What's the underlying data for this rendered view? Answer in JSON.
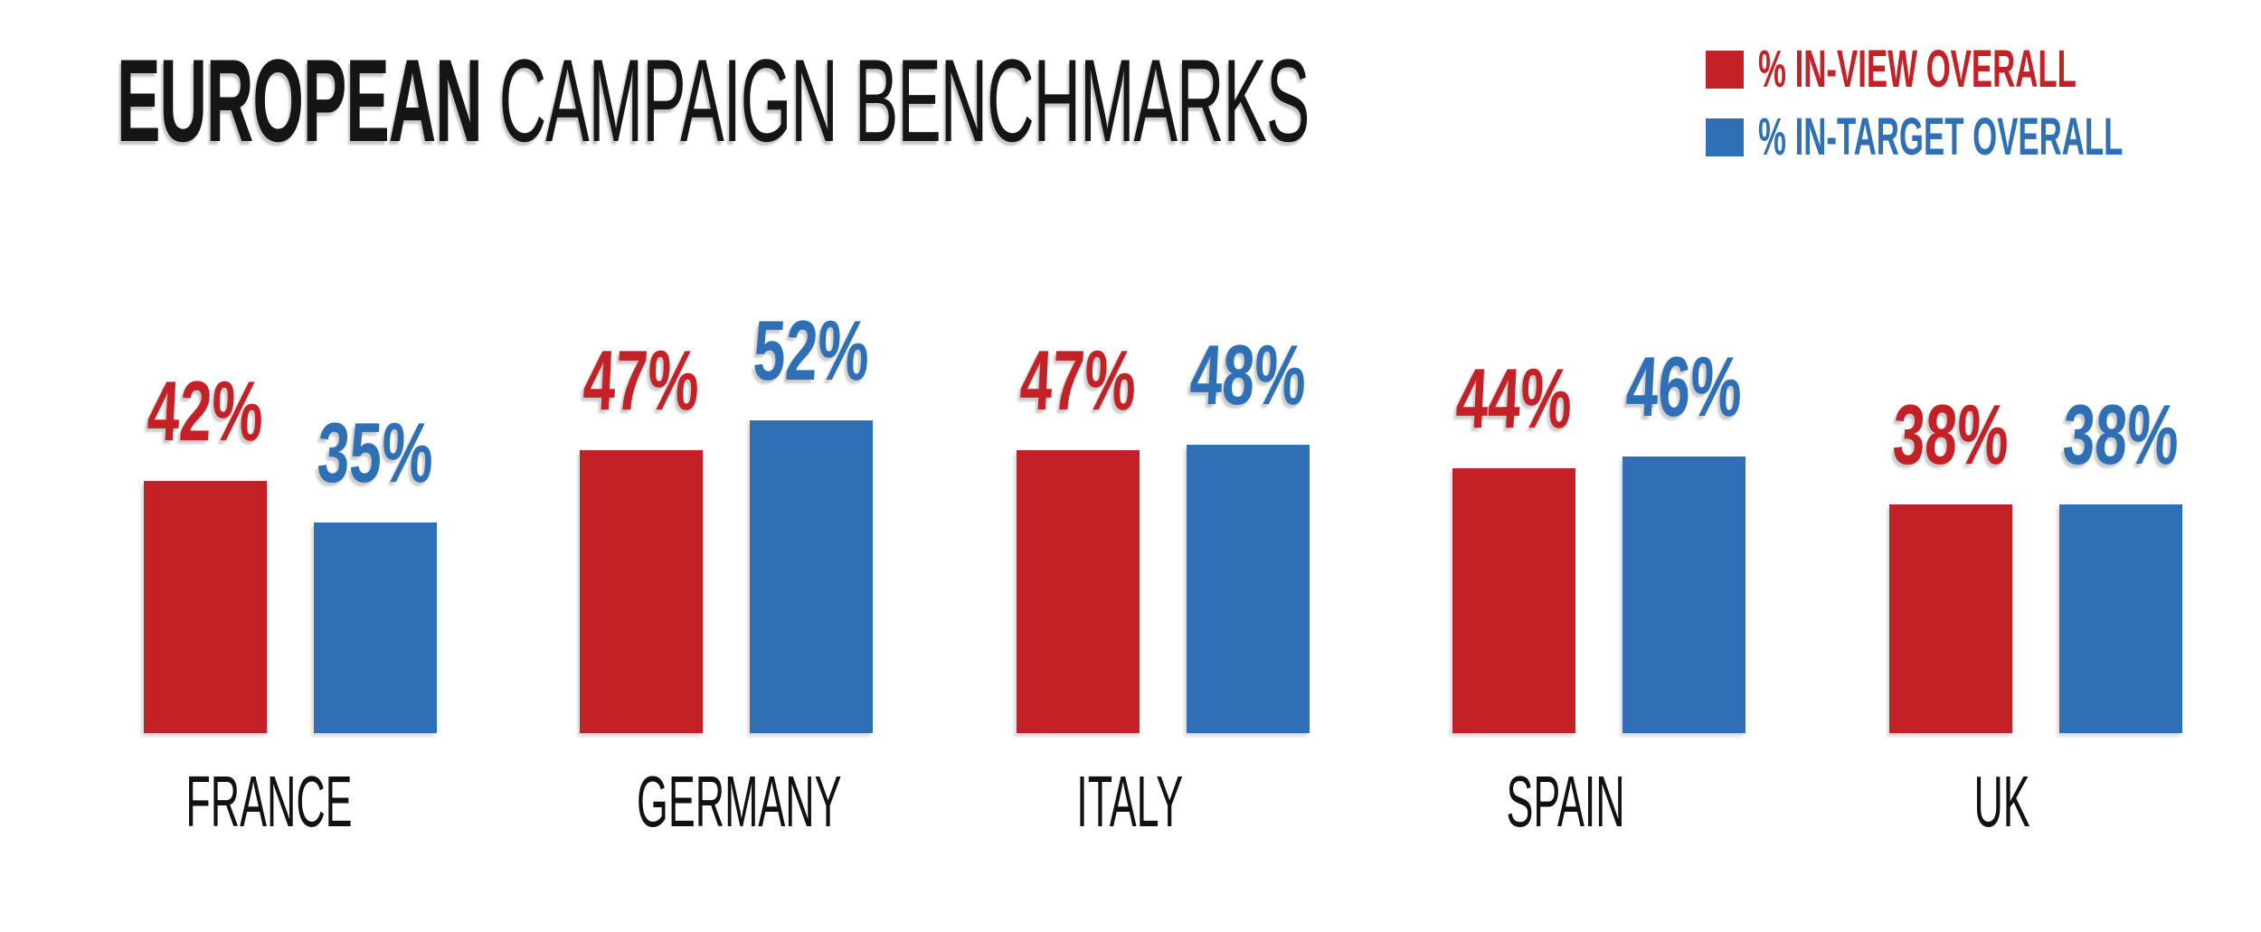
{
  "page": {
    "title_bold": "EUROPEAN",
    "title_rest": " CAMPAIGN BENCHMARKS",
    "background": "#FFFFFF"
  },
  "legend": {
    "position": "top-right",
    "items": [
      {
        "label": "% IN-VIEW OVERALL",
        "color": "#C42127",
        "swatch": "red-square"
      },
      {
        "label": "% IN-TARGET OVERALL",
        "color": "#2E6FB5",
        "swatch": "blue-square"
      }
    ]
  },
  "chart_data": {
    "type": "bar",
    "title": "EUROPEAN CAMPAIGN BENCHMARKS",
    "categories": [
      "FRANCE",
      "GERMANY",
      "ITALY",
      "SPAIN",
      "UK"
    ],
    "series": [
      {
        "name": "% IN-VIEW OVERALL",
        "color": "#C42127",
        "values": [
          42,
          47,
          47,
          44,
          38
        ]
      },
      {
        "name": "% IN-TARGET OVERALL",
        "color": "#2E6FB5",
        "values": [
          35,
          52,
          48,
          46,
          38
        ]
      }
    ],
    "value_suffix": "%",
    "data_labels": true,
    "axes_visible": false,
    "gridlines": false,
    "legend_position": "top-right",
    "ylim": [
      0,
      55
    ]
  }
}
